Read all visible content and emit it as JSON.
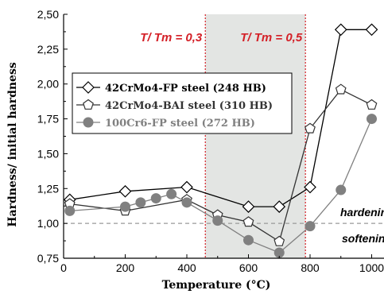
{
  "chart_data": {
    "type": "line",
    "xlabel": "Temperature (°C)",
    "ylabel": "Hardness/ initial hardness",
    "xlim": [
      0,
      1040
    ],
    "ylim": [
      0.75,
      2.5
    ],
    "xticks": [
      "0",
      "200",
      "400",
      "600",
      "800",
      "1000"
    ],
    "yticks": [
      "0,75",
      "1,00",
      "1,25",
      "1,50",
      "1,75",
      "2,00",
      "2,25",
      "2,50"
    ],
    "grid": false,
    "legend_position": "upper-left",
    "series": [
      {
        "name": "42CrMo4-FP steel (248 HB)",
        "marker": "diamond",
        "color": "#000000",
        "x": [
          20,
          200,
          400,
          600,
          700,
          800,
          900,
          1000
        ],
        "y": [
          1.17,
          1.23,
          1.26,
          1.12,
          1.12,
          1.26,
          2.39,
          2.39
        ]
      },
      {
        "name": "42CrMo4-BAI steel (310 HB)",
        "marker": "pentagon",
        "color": "#333333",
        "x": [
          20,
          200,
          400,
          500,
          600,
          700,
          800,
          900,
          1000
        ],
        "y": [
          1.14,
          1.09,
          1.17,
          1.06,
          1.01,
          0.87,
          1.68,
          1.96,
          1.85
        ]
      },
      {
        "name": "100Cr6-FP steel (272 HB)",
        "marker": "circle",
        "color": "#808080",
        "x": [
          20,
          200,
          250,
          300,
          350,
          400,
          500,
          600,
          700,
          800,
          900,
          1000
        ],
        "y": [
          1.09,
          1.12,
          1.15,
          1.18,
          1.21,
          1.15,
          1.02,
          0.88,
          0.79,
          0.98,
          1.24,
          1.75
        ]
      }
    ],
    "annotations": {
      "ratio_03": "T/ Tm = 0,3",
      "ratio_05": "T/ Tm = 0,5",
      "hardening": "hardening",
      "softening": "softening"
    },
    "reference_line_y": 1.0,
    "shaded_band_x": [
      460,
      785
    ],
    "vertical_lines_x": [
      460,
      785
    ]
  }
}
